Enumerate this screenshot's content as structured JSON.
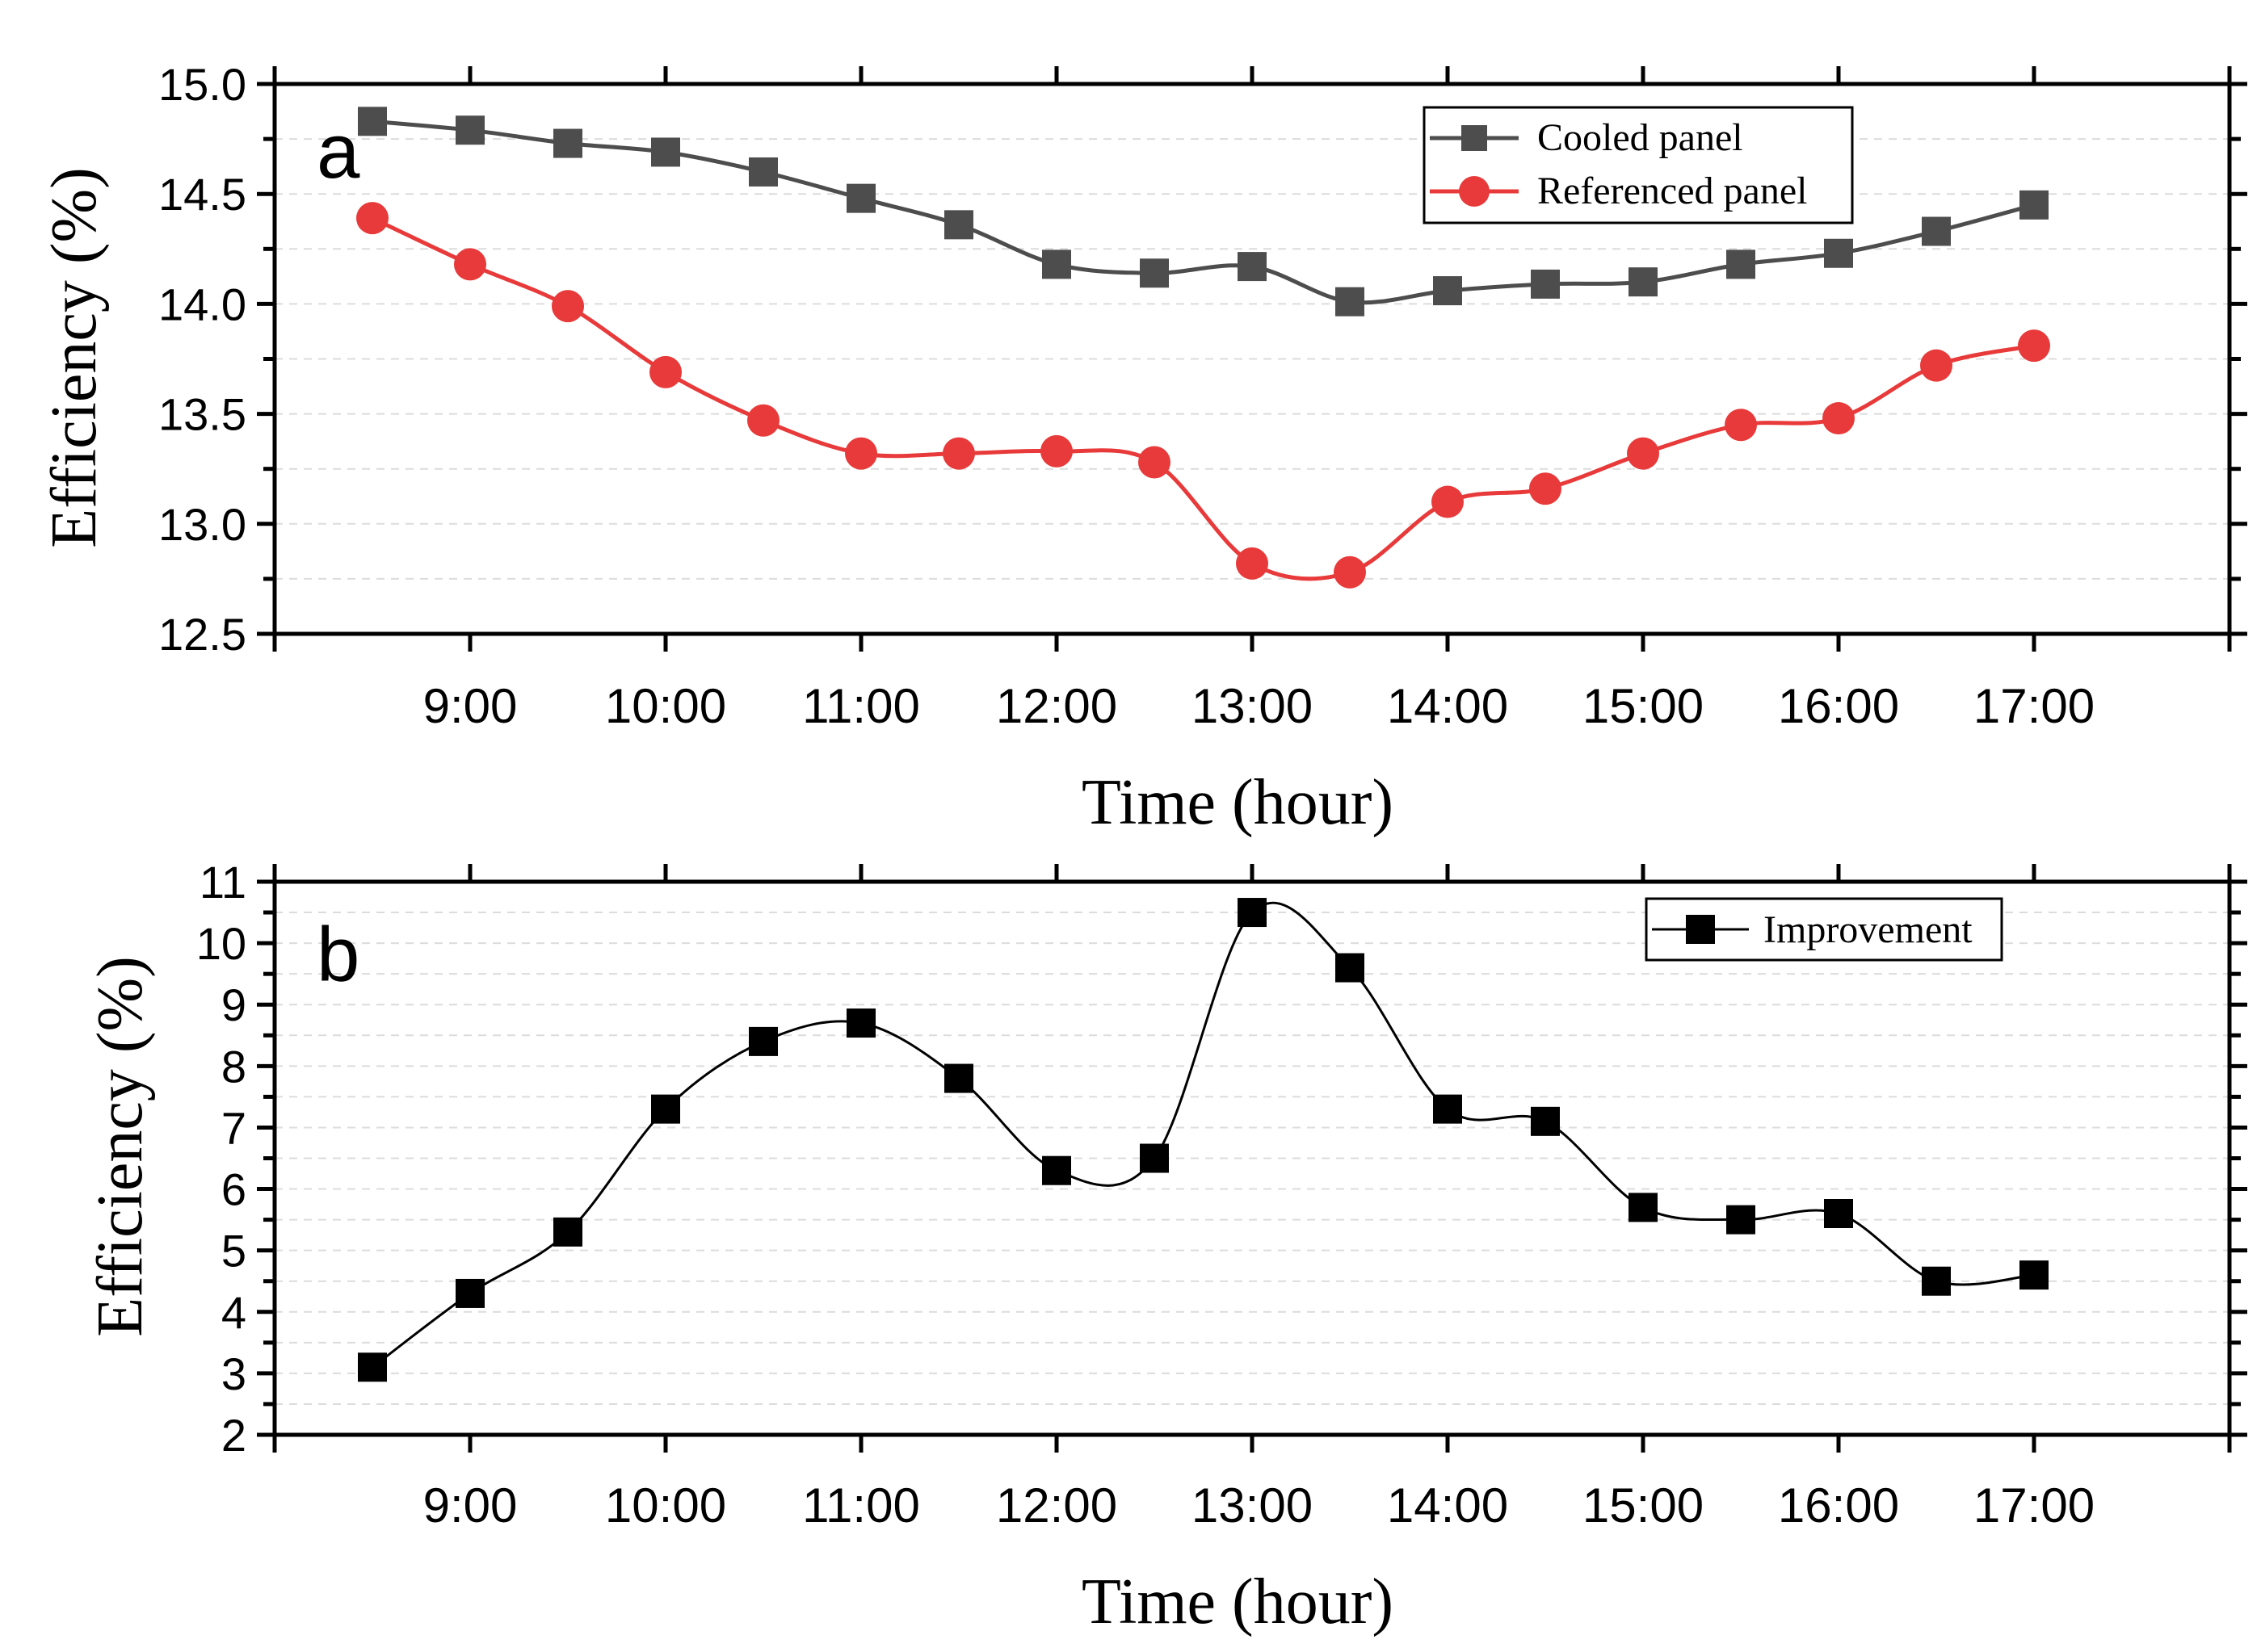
{
  "chart_data": [
    {
      "type": "line",
      "panel_label": "a",
      "xlabel": "Time (hour)",
      "ylabel": "Efficiency (%)",
      "x_ticks": [
        "9:00",
        "10:00",
        "11:00",
        "12:00",
        "13:00",
        "14:00",
        "15:00",
        "16:00",
        "17:00"
      ],
      "x_hours": [
        8.5,
        9,
        9.5,
        10,
        10.5,
        11,
        11.5,
        12,
        12.5,
        13,
        13.5,
        14,
        14.5,
        15,
        15.5,
        16,
        16.5,
        17
      ],
      "xlim": [
        8,
        18
      ],
      "ylim": [
        12.5,
        15.0
      ],
      "y_ticks": [
        "12.5",
        "13.0",
        "13.5",
        "14.0",
        "14.5",
        "15.0"
      ],
      "grid": "horizontal dashed",
      "legend_position": "top-right",
      "series": [
        {
          "name": "Cooled panel",
          "marker": "square",
          "color": "#4d4d4d",
          "values": [
            14.83,
            14.79,
            14.73,
            14.69,
            14.6,
            14.48,
            14.36,
            14.18,
            14.14,
            14.17,
            14.01,
            14.06,
            14.09,
            14.1,
            14.18,
            14.23,
            14.33,
            14.45
          ]
        },
        {
          "name": "Referenced panel",
          "marker": "circle",
          "color": "#e83a3a",
          "values": [
            14.39,
            14.18,
            13.99,
            13.69,
            13.47,
            13.32,
            13.32,
            13.33,
            13.28,
            12.82,
            12.78,
            13.1,
            13.16,
            13.32,
            13.45,
            13.48,
            13.72,
            13.81
          ]
        }
      ]
    },
    {
      "type": "line",
      "panel_label": "b",
      "xlabel": "Time (hour)",
      "ylabel": "Efficiency (%)",
      "x_ticks": [
        "9:00",
        "10:00",
        "11:00",
        "12:00",
        "13:00",
        "14:00",
        "15:00",
        "16:00",
        "17:00"
      ],
      "x_hours": [
        8.5,
        9,
        9.5,
        10,
        10.5,
        11,
        11.5,
        12,
        12.5,
        13,
        13.5,
        14,
        14.5,
        15,
        15.5,
        16,
        16.5,
        17
      ],
      "xlim": [
        8,
        18
      ],
      "ylim": [
        2,
        11
      ],
      "y_ticks": [
        "2",
        "3",
        "4",
        "5",
        "6",
        "7",
        "8",
        "9",
        "10",
        "11"
      ],
      "grid": "horizontal dashed",
      "legend_position": "top-right",
      "series": [
        {
          "name": "Improvement",
          "marker": "square",
          "color": "#000000",
          "values": [
            3.1,
            4.3,
            5.3,
            7.3,
            8.4,
            8.7,
            7.8,
            6.3,
            6.5,
            10.5,
            9.6,
            7.3,
            7.1,
            5.7,
            5.5,
            5.6,
            4.5,
            4.6
          ]
        }
      ]
    }
  ]
}
